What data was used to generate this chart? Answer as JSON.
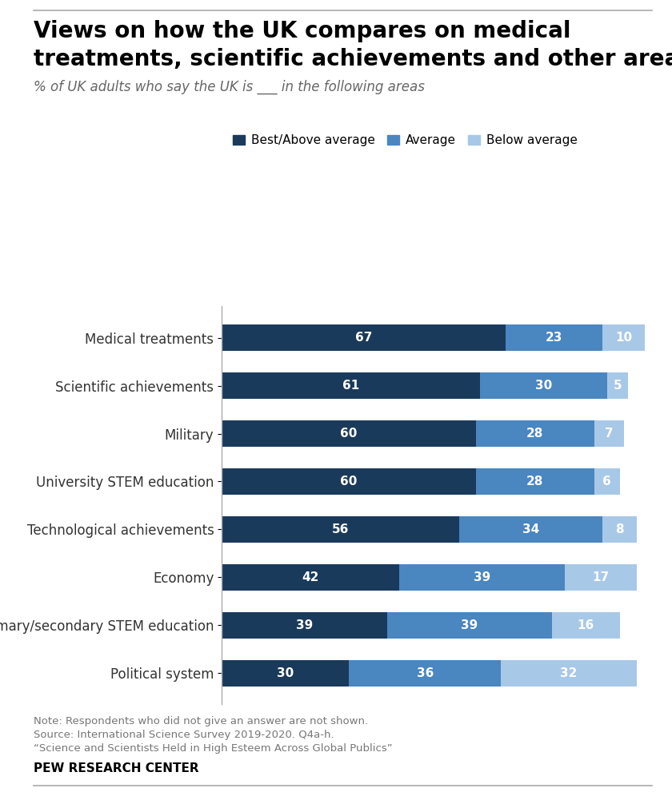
{
  "title_line1": "Views on how the UK compares on medical",
  "title_line2": "treatments, scientific achievements and other areas",
  "subtitle": "% of UK adults who say the UK is ___ in the following areas",
  "categories": [
    "Medical treatments",
    "Scientific achievements",
    "Military",
    "University STEM education",
    "Technological achievements",
    "Economy",
    "Primary/secondary STEM education",
    "Political system"
  ],
  "best_above": [
    67,
    61,
    60,
    60,
    56,
    42,
    39,
    30
  ],
  "average": [
    23,
    30,
    28,
    28,
    34,
    39,
    39,
    36
  ],
  "below": [
    10,
    5,
    7,
    6,
    8,
    17,
    16,
    32
  ],
  "color_best": "#1a3a5c",
  "color_avg": "#4a86c0",
  "color_below": "#a8c8e8",
  "legend_labels": [
    "Best/Above average",
    "Average",
    "Below average"
  ],
  "note_line1": "Note: Respondents who did not give an answer are not shown.",
  "note_line2": "Source: International Science Survey 2019-2020. Q4a-h.",
  "note_line3": "“Science and Scientists Held in High Esteem Across Global Publics”",
  "pew": "PEW RESEARCH CENTER",
  "bar_height": 0.55,
  "figsize": [
    8.4,
    9.96
  ],
  "dpi": 100
}
